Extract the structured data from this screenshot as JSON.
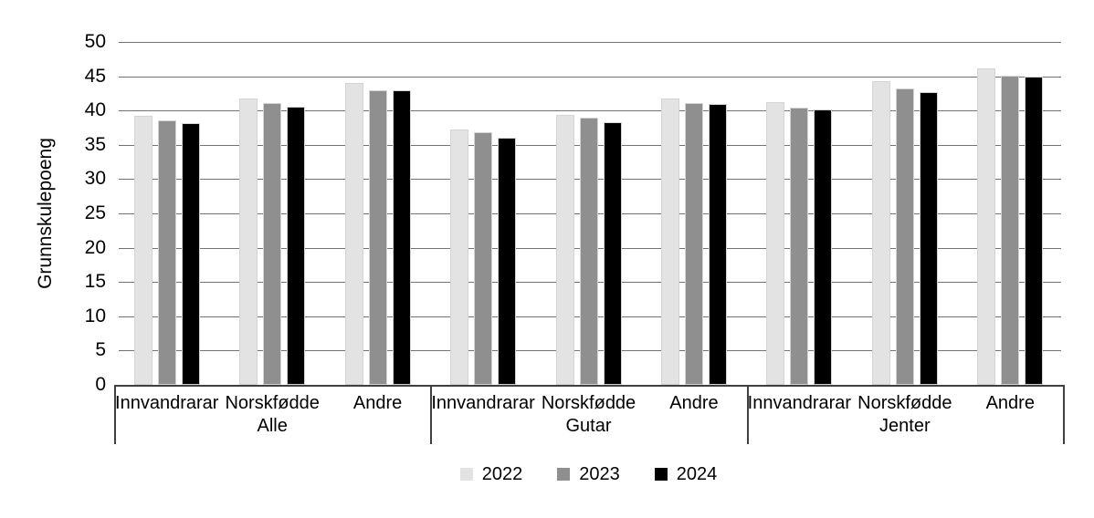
{
  "chart_data": {
    "type": "bar",
    "title": "",
    "ylabel": "Grunnskulepoeng",
    "xlabel": "",
    "ylim": [
      0,
      50
    ],
    "yticks": [
      0,
      5,
      10,
      15,
      20,
      25,
      30,
      35,
      40,
      45,
      50
    ],
    "grid": true,
    "legend_position": "bottom",
    "groups": [
      "Alle",
      "Gutar",
      "Jenter"
    ],
    "categories": [
      "Innvandrarar",
      "Norskfødde",
      "Andre"
    ],
    "series": [
      {
        "name": "2022",
        "color": "#e3e3e3",
        "values": {
          "Alle": [
            39.2,
            41.8,
            44.0
          ],
          "Gutar": [
            37.3,
            39.4,
            41.8
          ],
          "Jenter": [
            41.2,
            44.3,
            46.2
          ]
        }
      },
      {
        "name": "2023",
        "color": "#8f8f8f",
        "values": {
          "Alle": [
            38.6,
            41.1,
            43.0
          ],
          "Gutar": [
            36.9,
            38.9,
            41.1
          ],
          "Jenter": [
            40.4,
            43.2,
            45.1
          ]
        }
      },
      {
        "name": "2024",
        "color": "#000000",
        "values": {
          "Alle": [
            38.1,
            40.5,
            42.9
          ],
          "Gutar": [
            36.1,
            38.3,
            41.0
          ],
          "Jenter": [
            40.2,
            42.7,
            45.0
          ]
        }
      }
    ],
    "style": {
      "grid_color": "#737373",
      "axis_color": "#404040",
      "text_color": "#000000",
      "background": "#ffffff"
    }
  }
}
